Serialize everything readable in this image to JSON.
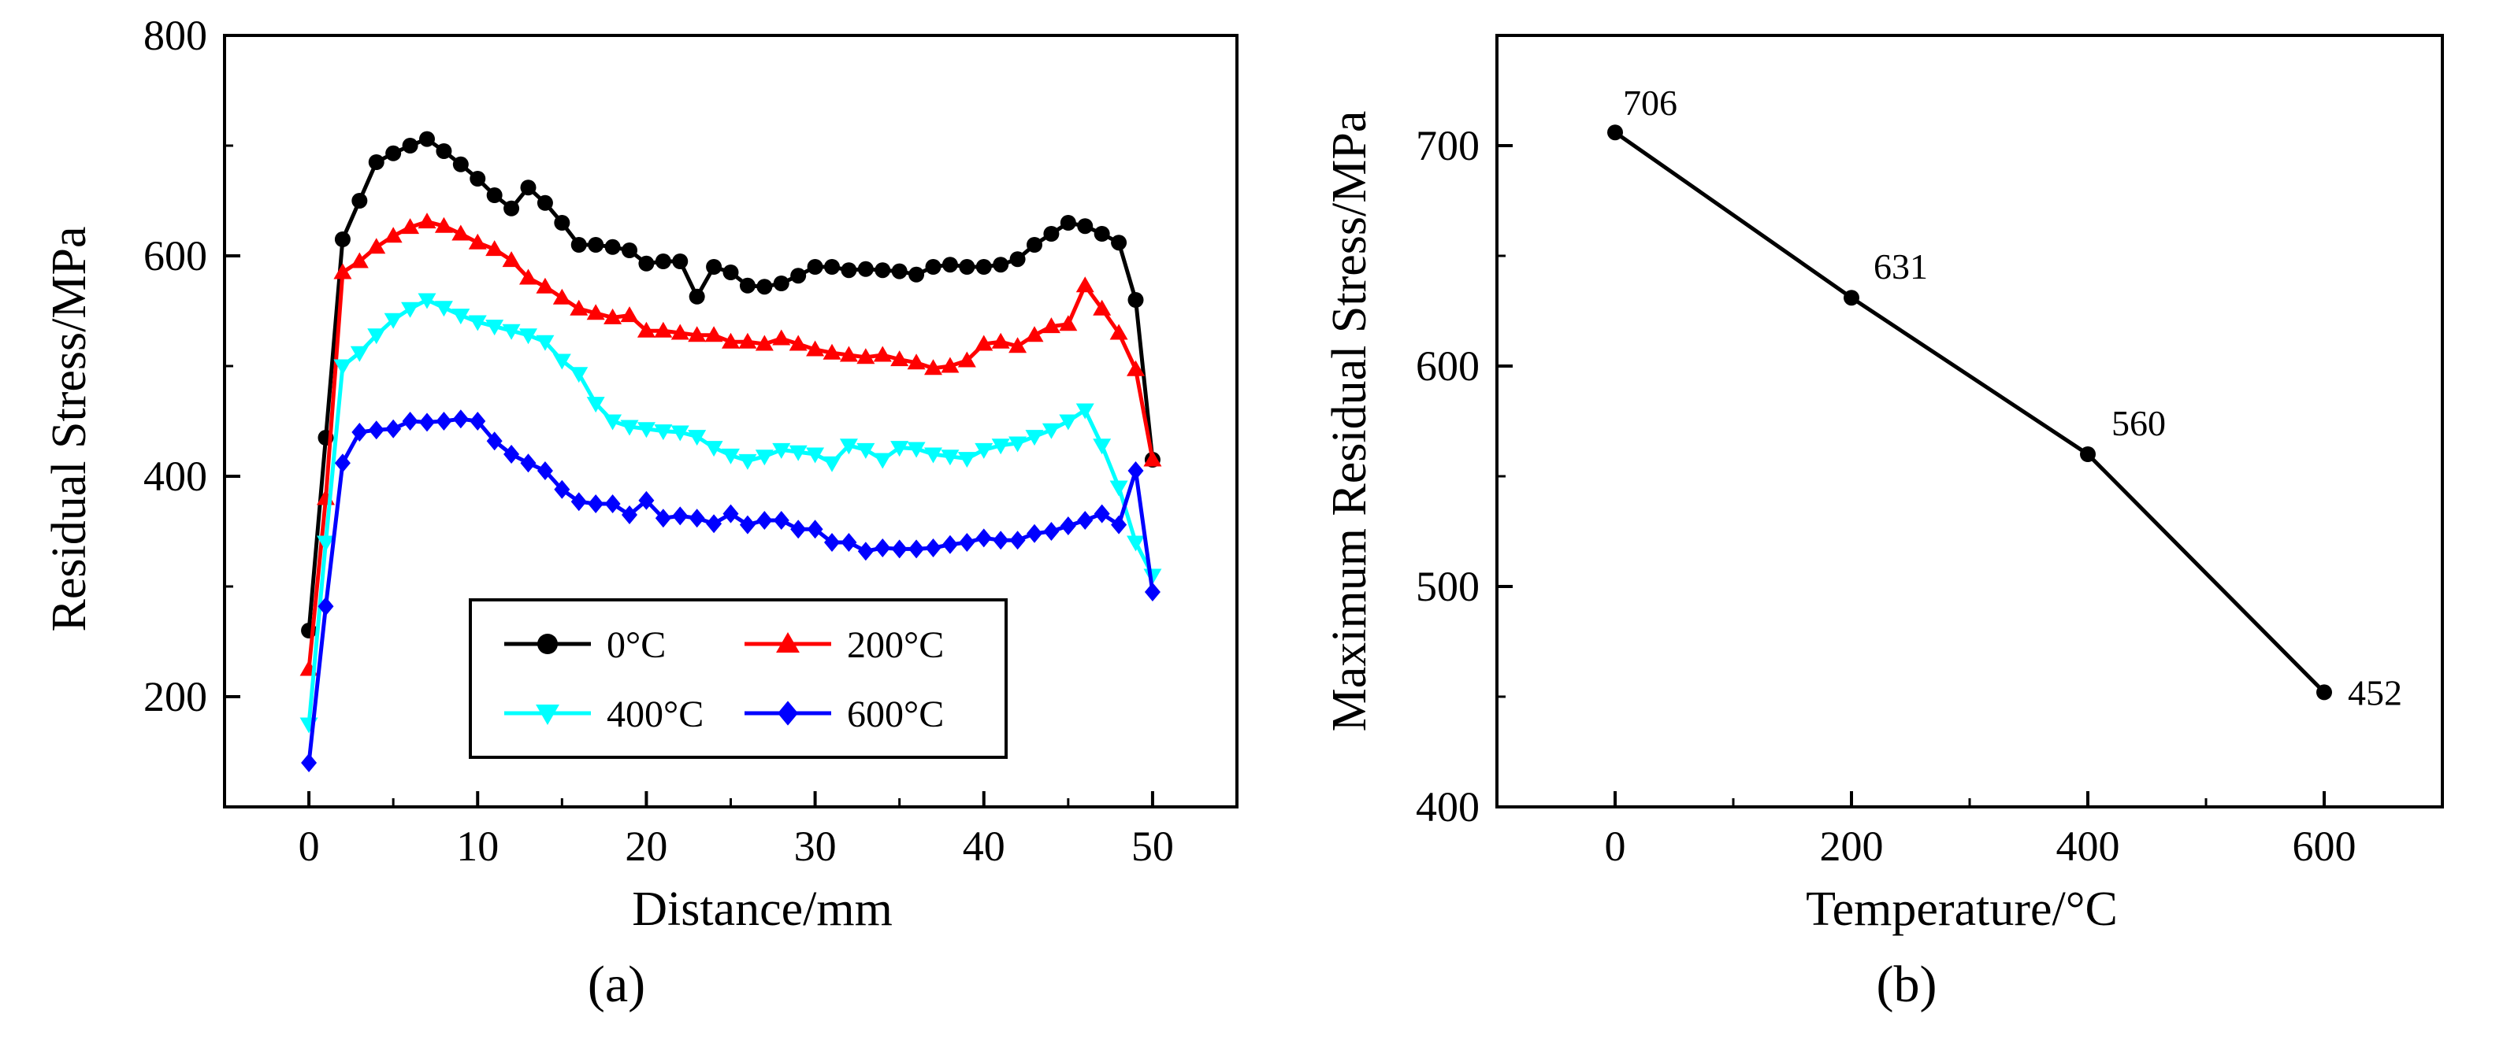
{
  "chart_data": [
    {
      "type": "line",
      "panel_label": "(a)",
      "xlabel": "Distance/mm",
      "ylabel": "Residual Stress/MPa",
      "xlim": [
        -5,
        55
      ],
      "ylim": [
        100,
        800
      ],
      "xticks": [
        0,
        10,
        20,
        30,
        40,
        50
      ],
      "yticks": [
        200,
        400,
        600,
        800
      ],
      "grid": false,
      "legend_placement": "bottom-center",
      "series": [
        {
          "name": "0°C",
          "color": "#000000",
          "marker": "circle",
          "x": [
            0,
            1,
            2,
            3,
            4,
            5,
            6,
            7,
            8,
            9,
            10,
            11,
            12,
            13,
            14,
            15,
            16,
            17,
            18,
            19,
            20,
            21,
            22,
            23,
            24,
            25,
            26,
            27,
            28,
            29,
            30,
            31,
            32,
            33,
            34,
            35,
            36,
            37,
            38,
            39,
            40,
            41,
            42,
            43,
            44,
            45,
            46,
            47,
            48,
            49,
            50
          ],
          "y": [
            260,
            435,
            615,
            650,
            685,
            693,
            700,
            706,
            695,
            683,
            670,
            655,
            643,
            662,
            648,
            630,
            610,
            610,
            608,
            605,
            593,
            595,
            595,
            563,
            590,
            585,
            573,
            572,
            575,
            582,
            590,
            590,
            587,
            588,
            587,
            586,
            583,
            590,
            592,
            590,
            590,
            592,
            597,
            610,
            620,
            630,
            627,
            620,
            612,
            560,
            415
          ]
        },
        {
          "name": "200°C",
          "color": "#ff0000",
          "marker": "triangle-up",
          "x": [
            0,
            1,
            2,
            3,
            4,
            5,
            6,
            7,
            8,
            9,
            10,
            11,
            12,
            13,
            14,
            15,
            16,
            17,
            18,
            19,
            20,
            21,
            22,
            23,
            24,
            25,
            26,
            27,
            28,
            29,
            30,
            31,
            32,
            33,
            34,
            35,
            36,
            37,
            38,
            39,
            40,
            41,
            42,
            43,
            44,
            45,
            46,
            47,
            48,
            49,
            50
          ],
          "y": [
            225,
            380,
            585,
            595,
            608,
            618,
            626,
            631,
            627,
            620,
            612,
            606,
            596,
            580,
            572,
            562,
            552,
            548,
            544,
            546,
            532,
            532,
            530,
            528,
            528,
            522,
            522,
            520,
            525,
            520,
            515,
            512,
            510,
            508,
            510,
            506,
            503,
            498,
            500,
            505,
            520,
            522,
            518,
            528,
            536,
            538,
            573,
            552,
            530,
            497,
            415
          ]
        },
        {
          "name": "400°C",
          "color": "#00ffff",
          "marker": "triangle-down",
          "x": [
            0,
            1,
            2,
            3,
            4,
            5,
            6,
            7,
            8,
            9,
            10,
            11,
            12,
            13,
            14,
            15,
            16,
            17,
            18,
            19,
            20,
            21,
            22,
            23,
            24,
            25,
            26,
            27,
            28,
            29,
            30,
            31,
            32,
            33,
            34,
            35,
            36,
            37,
            38,
            39,
            40,
            41,
            42,
            43,
            44,
            45,
            46,
            47,
            48,
            49,
            50
          ],
          "y": [
            175,
            340,
            500,
            512,
            528,
            542,
            552,
            560,
            553,
            546,
            540,
            536,
            532,
            528,
            522,
            505,
            493,
            466,
            450,
            445,
            443,
            441,
            440,
            436,
            426,
            419,
            414,
            418,
            424,
            422,
            420,
            412,
            428,
            424,
            415,
            426,
            425,
            420,
            418,
            416,
            424,
            428,
            430,
            436,
            442,
            450,
            460,
            428,
            390,
            340,
            310
          ]
        },
        {
          "name": "600°C",
          "color": "#0000ff",
          "marker": "diamond",
          "x": [
            0,
            1,
            2,
            3,
            4,
            5,
            6,
            7,
            8,
            9,
            10,
            11,
            12,
            13,
            14,
            15,
            16,
            17,
            18,
            19,
            20,
            21,
            22,
            23,
            24,
            25,
            26,
            27,
            28,
            29,
            30,
            31,
            32,
            33,
            34,
            35,
            36,
            37,
            38,
            39,
            40,
            41,
            42,
            43,
            44,
            45,
            46,
            47,
            48,
            49,
            50
          ],
          "y": [
            140,
            282,
            412,
            440,
            442,
            443,
            450,
            449,
            450,
            452,
            450,
            432,
            420,
            412,
            405,
            388,
            377,
            375,
            375,
            365,
            378,
            362,
            364,
            362,
            357,
            366,
            356,
            360,
            360,
            352,
            352,
            340,
            340,
            332,
            335,
            334,
            334,
            335,
            338,
            340,
            344,
            342,
            342,
            348,
            350,
            355,
            360,
            366,
            356,
            405,
            295
          ]
        }
      ]
    },
    {
      "type": "line",
      "panel_label": "(b)",
      "xlabel": "Temperature/°C",
      "ylabel": "Maximum Residual Stress/MPa",
      "xlim": [
        -100,
        700
      ],
      "ylim": [
        400,
        750
      ],
      "xticks": [
        0,
        200,
        400,
        600
      ],
      "yticks": [
        400,
        500,
        600,
        700
      ],
      "grid": false,
      "categories": [
        0,
        200,
        400,
        600
      ],
      "values": [
        706,
        631,
        560,
        452
      ],
      "data_labels": [
        "706",
        "631",
        "560",
        "452"
      ],
      "color": "#000000",
      "marker": "circle"
    }
  ]
}
